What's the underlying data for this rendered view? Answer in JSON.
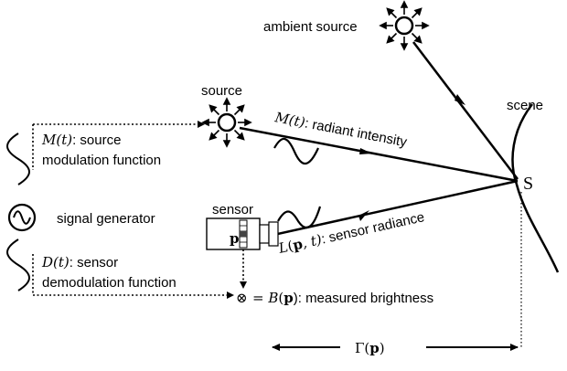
{
  "labels": {
    "ambient_source": "ambient source",
    "source": "source",
    "scene": "scene",
    "scene_point": "S",
    "sensor": "sensor",
    "signal_generator": "signal generator",
    "pixel": "p"
  },
  "equations": {
    "source_mod_symbol": "M(t)",
    "source_mod_line1": ": source",
    "source_mod_line2": "modulation function",
    "radiant_symbol": "M(t)",
    "radiant_text": ": radiant intensity",
    "sensor_demod_symbol": "D(t)",
    "sensor_demod_line1": ": sensor",
    "sensor_demod_line2": "demodulation function",
    "sensor_radiance_L": "L",
    "sensor_radiance_p": "p",
    "sensor_radiance_t": ", t)",
    "sensor_radiance_text": ": sensor radiance",
    "product_symbol": "⊗",
    "brightness_eq": "= ",
    "brightness_B": "B",
    "brightness_p": "p",
    "brightness_text": "): measured brightness",
    "gamma": "Γ(",
    "gamma_p": "p",
    "gamma_close": ")"
  },
  "icons": {
    "ambient_source": "sun-icon",
    "source": "sun-icon",
    "signal_generator": "sine-wave-icon",
    "sensor": "camera-icon",
    "product": "circled-times-icon"
  }
}
